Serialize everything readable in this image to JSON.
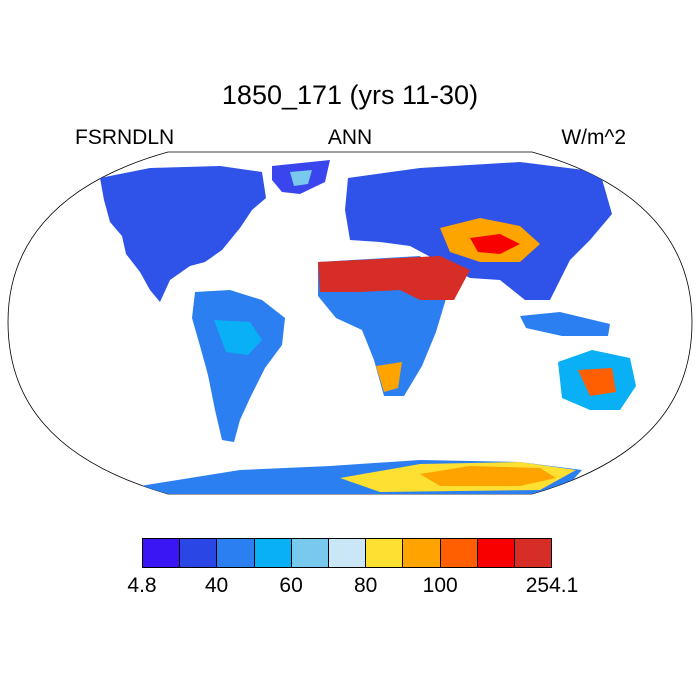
{
  "title": "1850_171 (yrs 11-30)",
  "labels": {
    "left": "FSRNDLN",
    "center": "ANN",
    "right": "W/m^2"
  },
  "colorbar": {
    "colors": [
      "#3b16f5",
      "#2a47e6",
      "#2b7ff0",
      "#09b0f5",
      "#79c9ef",
      "#c9e7f7",
      "#fde031",
      "#fea400",
      "#ff5f00",
      "#f80000",
      "#d62d27"
    ],
    "tick_labels": [
      "4.8",
      "40",
      "60",
      "80",
      "100",
      "254.1"
    ]
  }
}
